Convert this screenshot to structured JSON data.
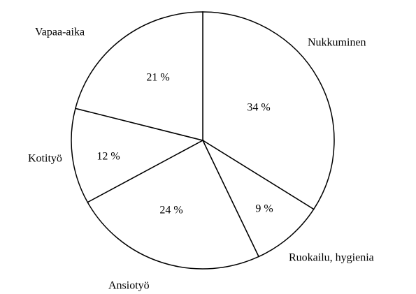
{
  "chart_data": {
    "type": "pie",
    "categories": [
      "Nukkuminen",
      "Ruokailu, hygienia",
      "Ansiotyö",
      "Kotityö",
      "Vapaa-aika"
    ],
    "values": [
      34,
      9,
      24,
      12,
      21
    ],
    "value_labels": [
      "34 %",
      "9 %",
      "24 %",
      "12 %",
      "21 %"
    ],
    "color": "#ffffff",
    "edge_color": "#000000"
  }
}
